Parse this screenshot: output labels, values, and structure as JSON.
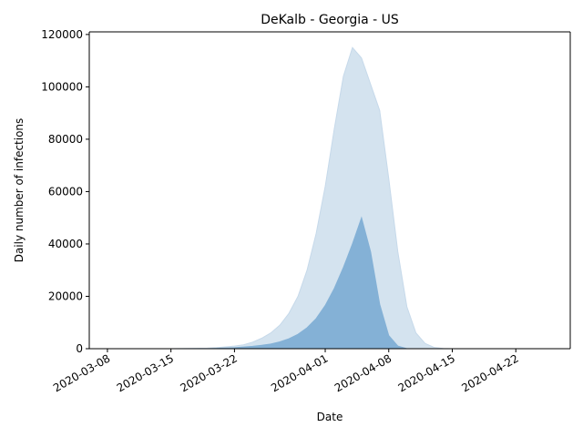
{
  "chart_data": {
    "type": "area",
    "title": "DeKalb - Georgia - US",
    "xlabel": "Date",
    "ylabel": "Daily number of infections",
    "xlim": [
      "2020-03-06",
      "2020-04-28"
    ],
    "ylim": [
      0,
      121000
    ],
    "x_ticks": [
      "2020-03-08",
      "2020-03-15",
      "2020-03-22",
      "2020-04-01",
      "2020-04-08",
      "2020-04-15",
      "2020-04-22"
    ],
    "y_ticks": [
      0,
      20000,
      40000,
      60000,
      80000,
      100000,
      120000
    ],
    "y_tick_labels": [
      "0",
      "20000",
      "40000",
      "60000",
      "80000",
      "100000",
      "120000"
    ],
    "grid": false,
    "legend": "none",
    "series": [
      {
        "role": "upper-band",
        "color": "#c6d9ea",
        "opacity": 0.75,
        "points": [
          [
            "2020-03-08",
            0
          ],
          [
            "2020-03-15",
            0
          ],
          [
            "2020-03-19",
            200
          ],
          [
            "2020-03-20",
            400
          ],
          [
            "2020-03-21",
            700
          ],
          [
            "2020-03-22",
            1000
          ],
          [
            "2020-03-23",
            1500
          ],
          [
            "2020-03-24",
            2500
          ],
          [
            "2020-03-25",
            4000
          ],
          [
            "2020-03-26",
            6000
          ],
          [
            "2020-03-27",
            9000
          ],
          [
            "2020-03-28",
            13500
          ],
          [
            "2020-03-29",
            20000
          ],
          [
            "2020-03-30",
            30000
          ],
          [
            "2020-03-31",
            44000
          ],
          [
            "2020-04-01",
            62000
          ],
          [
            "2020-04-02",
            84000
          ],
          [
            "2020-04-03",
            104000
          ],
          [
            "2020-04-04",
            115000
          ],
          [
            "2020-04-05",
            111000
          ],
          [
            "2020-04-06",
            101000
          ],
          [
            "2020-04-07",
            91000
          ],
          [
            "2020-04-08",
            65000
          ],
          [
            "2020-04-09",
            37000
          ],
          [
            "2020-04-10",
            16000
          ],
          [
            "2020-04-11",
            6000
          ],
          [
            "2020-04-12",
            2000
          ],
          [
            "2020-04-13",
            500
          ],
          [
            "2020-04-14",
            100
          ],
          [
            "2020-04-15",
            0
          ],
          [
            "2020-04-27",
            0
          ]
        ]
      },
      {
        "role": "main",
        "color": "#84b1d6",
        "opacity": 1,
        "points": [
          [
            "2020-03-08",
            0
          ],
          [
            "2020-03-19",
            0
          ],
          [
            "2020-03-22",
            400
          ],
          [
            "2020-03-24",
            900
          ],
          [
            "2020-03-25",
            1300
          ],
          [
            "2020-03-26",
            1800
          ],
          [
            "2020-03-27",
            2600
          ],
          [
            "2020-03-28",
            3800
          ],
          [
            "2020-03-29",
            5500
          ],
          [
            "2020-03-30",
            8000
          ],
          [
            "2020-03-31",
            11500
          ],
          [
            "2020-04-01",
            16500
          ],
          [
            "2020-04-02",
            23000
          ],
          [
            "2020-04-03",
            31000
          ],
          [
            "2020-04-04",
            40000
          ],
          [
            "2020-04-05",
            50000
          ],
          [
            "2020-04-06",
            37000
          ],
          [
            "2020-04-07",
            17000
          ],
          [
            "2020-04-08",
            5000
          ],
          [
            "2020-04-09",
            1000
          ],
          [
            "2020-04-10",
            0
          ],
          [
            "2020-04-27",
            0
          ]
        ]
      }
    ]
  }
}
